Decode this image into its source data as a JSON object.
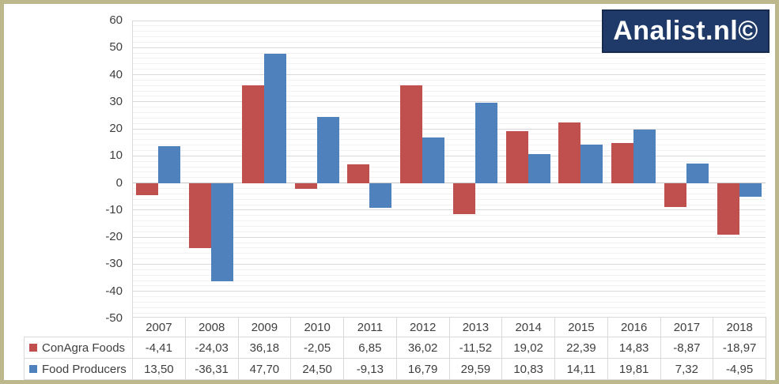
{
  "logo": {
    "text": "Analist.nl©",
    "bg_color": "#1f3a68",
    "text_color": "#ffffff"
  },
  "colors": {
    "frame_border": "#bdb78c",
    "grid_major": "#d9d9d9",
    "grid_minor": "#f2f2f2",
    "axis_text": "#3f3f3f",
    "table_border": "#d9d9d9",
    "series_conagra": "#c0504d",
    "series_producers": "#4f81bd"
  },
  "chart_data": {
    "type": "bar",
    "title": "",
    "xlabel": "",
    "ylabel": "",
    "categories": [
      "2007",
      "2008",
      "2009",
      "2010",
      "2011",
      "2012",
      "2013",
      "2014",
      "2015",
      "2016",
      "2017",
      "2018"
    ],
    "series": [
      {
        "name": "ConAgra Foods",
        "color": "#c0504d",
        "values": [
          -4.41,
          -24.03,
          36.18,
          -2.05,
          6.85,
          36.02,
          -11.52,
          19.02,
          22.39,
          14.83,
          -8.87,
          -18.97
        ],
        "labels": [
          "-4,41",
          "-24,03",
          "36,18",
          "-2,05",
          "6,85",
          "36,02",
          "-11,52",
          "19,02",
          "22,39",
          "14,83",
          "-8,87",
          "-18,97"
        ]
      },
      {
        "name": "Food Producers",
        "color": "#4f81bd",
        "values": [
          13.5,
          -36.31,
          47.7,
          24.5,
          -9.13,
          16.79,
          29.59,
          10.83,
          14.11,
          19.81,
          7.32,
          -4.95
        ],
        "labels": [
          "13,50",
          "-36,31",
          "47,70",
          "24,50",
          "-9,13",
          "16,79",
          "29,59",
          "10,83",
          "14,11",
          "19,81",
          "7,32",
          "-4,95"
        ]
      }
    ],
    "ylim": [
      -50,
      60
    ],
    "ytick_interval": 10,
    "yminor_interval": 2,
    "yticks": [
      "60",
      "50",
      "40",
      "30",
      "20",
      "10",
      "0",
      "-10",
      "-20",
      "-30",
      "-40",
      "-50"
    ],
    "grid": true,
    "legend_position": "table-left-column",
    "data_table_shown": true
  }
}
